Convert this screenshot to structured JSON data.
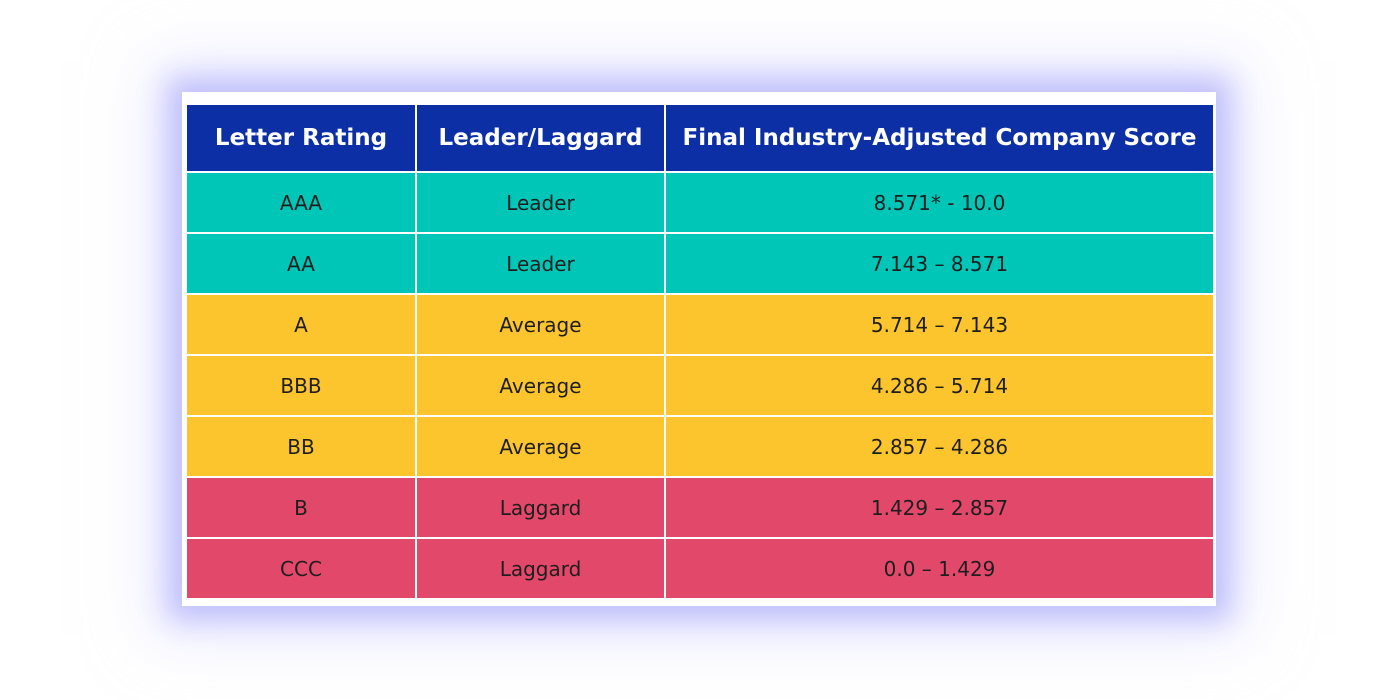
{
  "table": {
    "header_color": "#0c2fa5",
    "tier_colors": {
      "Leader": "#00c6b8",
      "Average": "#fcc42d",
      "Laggard": "#e2486a"
    },
    "headers": [
      "Letter Rating",
      "Leader/Laggard",
      "Final Industry-Adjusted Company Score"
    ],
    "rows": [
      {
        "rating": "AAA",
        "tier": "Leader",
        "score": "8.571* - 10.0"
      },
      {
        "rating": "AA",
        "tier": "Leader",
        "score": "7.143 – 8.571"
      },
      {
        "rating": "A",
        "tier": "Average",
        "score": "5.714 – 7.143"
      },
      {
        "rating": "BBB",
        "tier": "Average",
        "score": "4.286 – 5.714"
      },
      {
        "rating": "BB",
        "tier": "Average",
        "score": "2.857 – 4.286"
      },
      {
        "rating": "B",
        "tier": "Laggard",
        "score": "1.429 – 2.857"
      },
      {
        "rating": "CCC",
        "tier": "Laggard",
        "score": "0.0 – 1.429"
      }
    ]
  }
}
